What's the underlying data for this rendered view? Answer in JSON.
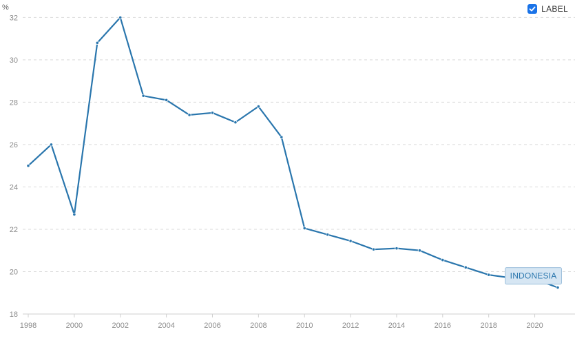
{
  "legend": {
    "label": "LABEL",
    "checked": true
  },
  "chart_data": {
    "type": "line",
    "y_unit": "%",
    "x": [
      1998,
      1999,
      2000,
      2001,
      2002,
      2003,
      2004,
      2005,
      2006,
      2007,
      2008,
      2009,
      2010,
      2011,
      2012,
      2013,
      2014,
      2015,
      2016,
      2017,
      2018,
      2019,
      2020,
      2021
    ],
    "series": [
      {
        "name": "INDONESIA",
        "color": "#2a76ad",
        "values": [
          25.0,
          26.0,
          22.7,
          30.8,
          32.0,
          28.3,
          28.1,
          27.4,
          27.5,
          27.05,
          27.8,
          26.35,
          22.05,
          21.75,
          21.45,
          21.05,
          21.1,
          21.0,
          20.55,
          20.2,
          19.85,
          19.7,
          19.65,
          19.25
        ]
      }
    ],
    "xticks": [
      1998,
      2000,
      2002,
      2004,
      2006,
      2008,
      2010,
      2012,
      2014,
      2016,
      2018,
      2020
    ],
    "yticks": [
      18,
      20,
      22,
      24,
      26,
      28,
      30,
      32
    ],
    "xlim": [
      1998,
      2021
    ],
    "ylim": [
      18,
      32.5
    ],
    "grid": true,
    "label_year": 2020,
    "label_value": 19.8
  }
}
